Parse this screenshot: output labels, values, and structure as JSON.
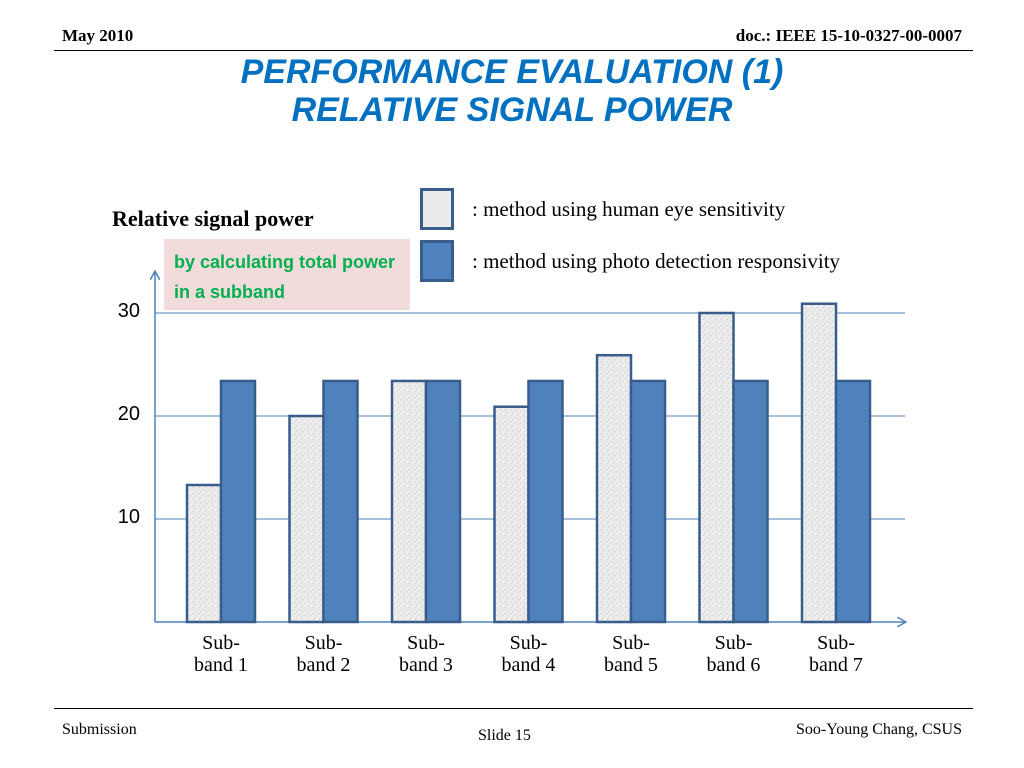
{
  "header": {
    "left": "May 2010",
    "right": "doc.: IEEE 15-10-0327-00-0007"
  },
  "title": {
    "line1": "PERFORMANCE EVALUATION (1)",
    "line2": "RELATIVE SIGNAL POWER"
  },
  "note": "by calculating total power in a subband",
  "footer": {
    "left": "Submission",
    "center": "Slide 15",
    "right": "Soo-Young Chang, CSUS"
  },
  "colors": {
    "title": "#0070c0",
    "series_eye": "#ebebeb",
    "series_photo": "#4f81bd",
    "bar_border": "#385d8a",
    "gridline": "#4f81bd",
    "note_bg": "#f2dcdb",
    "note_text": "#00b050"
  },
  "chart_data": {
    "type": "bar",
    "title": "Relative signal power",
    "categories": [
      "Sub-band 1",
      "Sub-band 2",
      "Sub-band 3",
      "Sub-band 4",
      "Sub-band 5",
      "Sub-band 6",
      "Sub-band 7"
    ],
    "category_lines": [
      [
        "Sub-",
        "band 1"
      ],
      [
        "Sub-",
        "band 2"
      ],
      [
        "Sub-",
        "band 3"
      ],
      [
        "Sub-",
        "band 4"
      ],
      [
        "Sub-",
        "band 5"
      ],
      [
        "Sub-",
        "band 6"
      ],
      [
        "Sub-",
        "band 7"
      ]
    ],
    "series": [
      {
        "name": ": method using human eye sensitivity",
        "values": [
          13.3,
          20.0,
          23.4,
          20.9,
          25.9,
          30.0,
          30.9
        ]
      },
      {
        "name": ": method using photo detection responsivity",
        "values": [
          23.4,
          23.4,
          23.4,
          23.4,
          23.4,
          23.4,
          23.4
        ]
      }
    ],
    "yticks": [
      10,
      20,
      30
    ],
    "ylim": [
      0,
      33
    ],
    "grid": true,
    "legend_position": "top-right"
  }
}
